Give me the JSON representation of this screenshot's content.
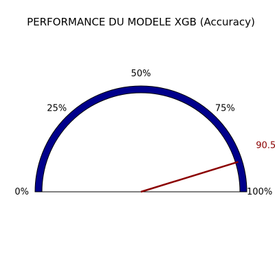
{
  "chart_data": {
    "type": "gauge",
    "title": "PERFORMANCE DU MODELE XGB (Accuracy)",
    "value": 90.5,
    "value_label": "90.5",
    "range": [
      0,
      100
    ],
    "ticks": [
      {
        "value": 0,
        "label": "0%"
      },
      {
        "value": 25,
        "label": "25%"
      },
      {
        "value": 50,
        "label": "50%"
      },
      {
        "value": 75,
        "label": "75%"
      },
      {
        "value": 100,
        "label": "100%"
      }
    ],
    "colors": {
      "arc": "#00008b",
      "arc_edge": "#000000",
      "needle": "#8b0000",
      "value_label": "#8b0000",
      "baseline": "#000000"
    }
  }
}
